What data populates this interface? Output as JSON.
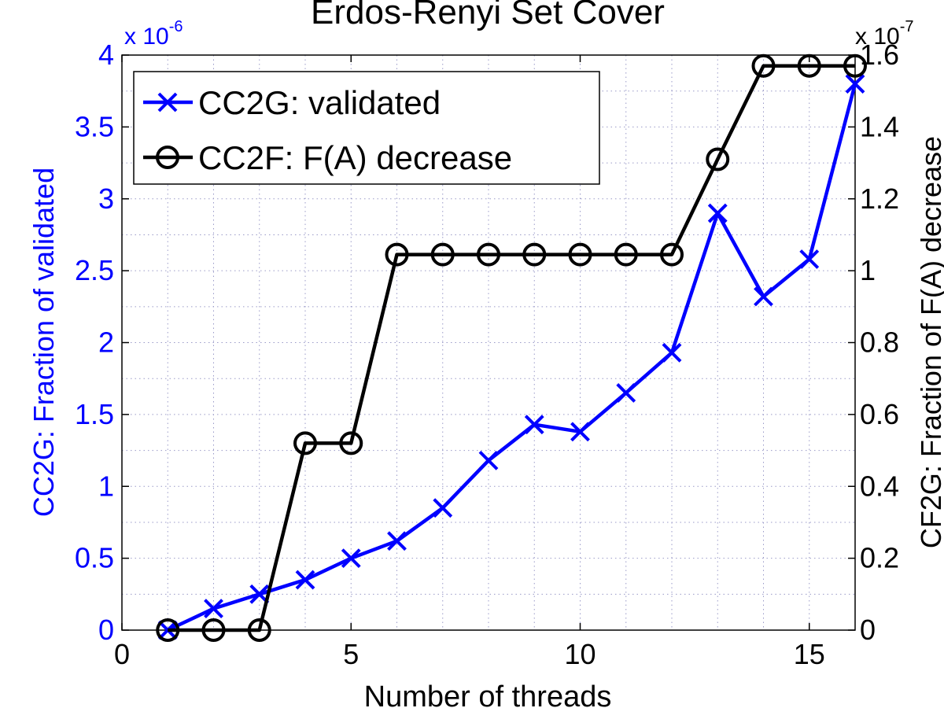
{
  "chart_data": {
    "type": "line",
    "title": "Erdos-Renyi Set Cover",
    "xlabel": "Number of threads",
    "xlim": [
      0,
      16
    ],
    "x_ticks": [
      0,
      5,
      10,
      15
    ],
    "left_axis": {
      "label": "CC2G: Fraction of validated",
      "exponent_label": "x 10",
      "exponent_power": "-6",
      "ylim": [
        0,
        4
      ],
      "ticks": [
        0,
        0.5,
        1,
        1.5,
        2,
        2.5,
        3,
        3.5,
        4
      ],
      "color": "#0000ff"
    },
    "right_axis": {
      "label": "CF2G: Fraction of F(A) decrease",
      "exponent_label": "x 10",
      "exponent_power": "-7",
      "ylim": [
        0,
        1.6
      ],
      "ticks": [
        0,
        0.2,
        0.4,
        0.6,
        0.8,
        1,
        1.2,
        1.4,
        1.6
      ],
      "color": "#000000"
    },
    "grid": true,
    "legend_position": "top-left",
    "series": [
      {
        "name": "CC2G: validated",
        "axis": "left",
        "marker": "x",
        "color": "#0000ff",
        "x": [
          1,
          2,
          3,
          4,
          5,
          6,
          7,
          8,
          9,
          10,
          11,
          12,
          13,
          14,
          15,
          16
        ],
        "values": [
          0,
          0.15,
          0.25,
          0.35,
          0.5,
          0.62,
          0.85,
          1.18,
          1.43,
          1.38,
          1.65,
          1.93,
          2.9,
          2.32,
          2.58,
          3.8
        ]
      },
      {
        "name": "CC2F: F(A) decrease",
        "axis": "right",
        "marker": "o",
        "color": "#000000",
        "x": [
          1,
          2,
          3,
          4,
          5,
          6,
          7,
          8,
          9,
          10,
          11,
          12,
          13,
          14,
          15,
          16
        ],
        "values": [
          0,
          0,
          0,
          0.52,
          0.52,
          1.045,
          1.045,
          1.045,
          1.045,
          1.045,
          1.045,
          1.045,
          1.31,
          1.57,
          1.57,
          1.57
        ]
      }
    ]
  }
}
